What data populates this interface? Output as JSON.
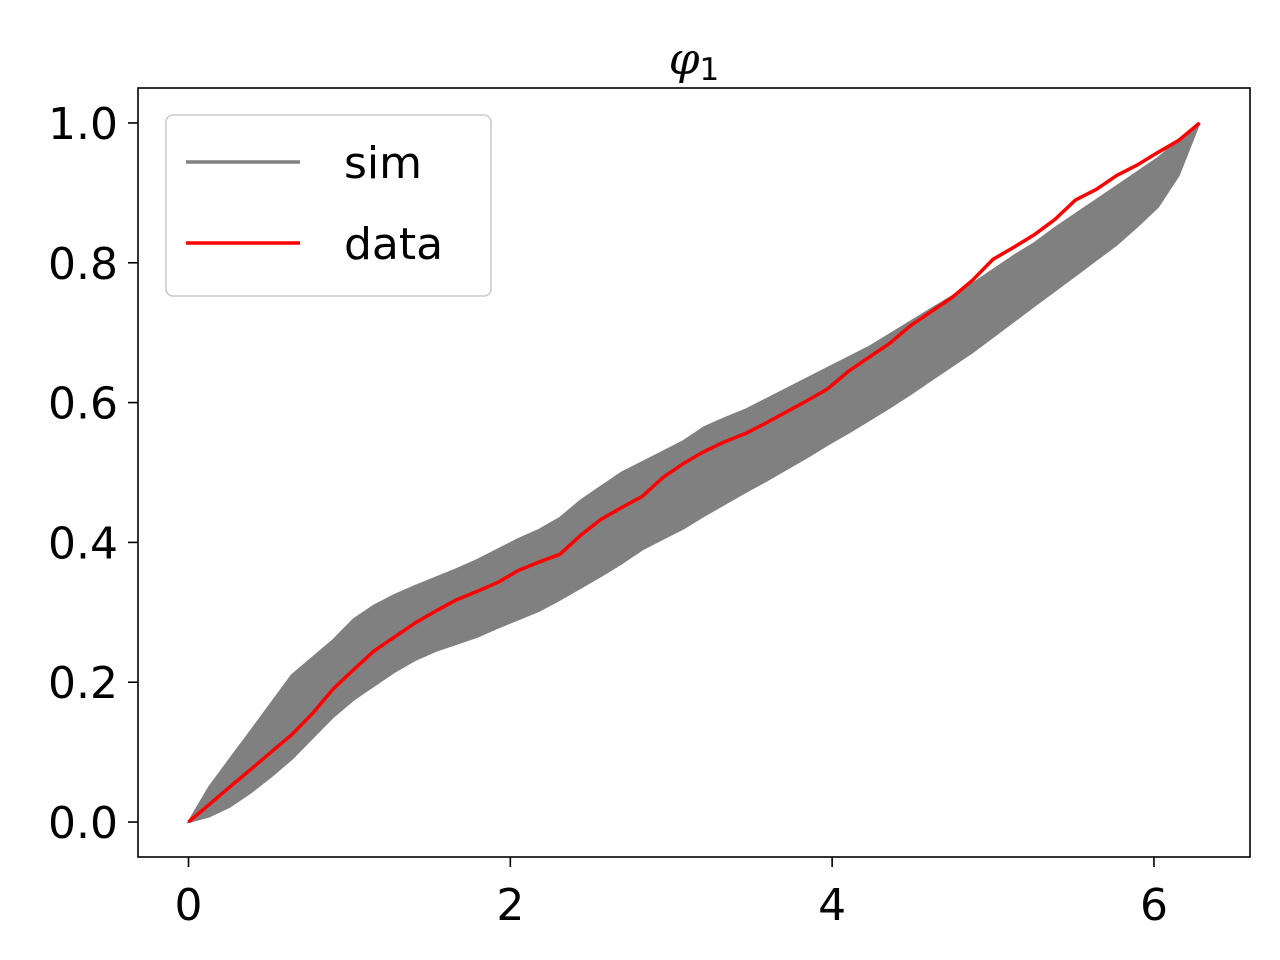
{
  "chart_data": {
    "type": "line",
    "title": "φ",
    "title_subscript": "1",
    "xlabel": "",
    "ylabel": "",
    "xlim": [
      -0.314,
      6.597
    ],
    "ylim": [
      -0.05,
      1.05
    ],
    "xticks": [
      0,
      2,
      4,
      6
    ],
    "xtick_labels": [
      "0",
      "2",
      "4",
      "6"
    ],
    "yticks": [
      0.0,
      0.2,
      0.4,
      0.6,
      0.8,
      1.0
    ],
    "ytick_labels": [
      "0.0",
      "0.2",
      "0.4",
      "0.6",
      "0.8",
      "1.0"
    ],
    "grid": false,
    "legend": {
      "placement": "upper-left",
      "entries": [
        {
          "label": "sim",
          "color": "#808080"
        },
        {
          "label": "data",
          "color": "#ff0000"
        }
      ]
    },
    "series": [
      {
        "name": "sim",
        "kind": "band",
        "color": "#808080",
        "x": [
          0.0,
          0.128,
          0.256,
          0.385,
          0.513,
          0.641,
          0.769,
          0.897,
          1.026,
          1.154,
          1.282,
          1.41,
          1.538,
          1.667,
          1.795,
          1.923,
          2.051,
          2.179,
          2.308,
          2.436,
          2.564,
          2.692,
          2.821,
          2.949,
          3.077,
          3.205,
          3.333,
          3.462,
          3.59,
          3.718,
          3.846,
          3.974,
          4.103,
          4.231,
          4.359,
          4.487,
          4.615,
          4.744,
          4.872,
          5.0,
          5.128,
          5.256,
          5.385,
          5.513,
          5.641,
          5.769,
          5.897,
          6.026,
          6.154,
          6.283
        ],
        "upper": [
          0.0,
          0.05,
          0.09,
          0.13,
          0.17,
          0.21,
          0.235,
          0.26,
          0.29,
          0.31,
          0.325,
          0.338,
          0.35,
          0.362,
          0.375,
          0.39,
          0.405,
          0.418,
          0.435,
          0.46,
          0.48,
          0.5,
          0.515,
          0.53,
          0.545,
          0.565,
          0.578,
          0.59,
          0.605,
          0.62,
          0.635,
          0.65,
          0.665,
          0.68,
          0.698,
          0.716,
          0.734,
          0.752,
          0.77,
          0.79,
          0.81,
          0.828,
          0.85,
          0.87,
          0.89,
          0.91,
          0.93,
          0.95,
          0.975,
          1.0
        ],
        "lower": [
          0.0,
          0.008,
          0.022,
          0.042,
          0.065,
          0.09,
          0.12,
          0.15,
          0.175,
          0.195,
          0.215,
          0.232,
          0.245,
          0.255,
          0.265,
          0.278,
          0.29,
          0.302,
          0.318,
          0.335,
          0.352,
          0.37,
          0.39,
          0.405,
          0.42,
          0.438,
          0.455,
          0.472,
          0.488,
          0.505,
          0.522,
          0.54,
          0.557,
          0.575,
          0.593,
          0.612,
          0.632,
          0.652,
          0.672,
          0.694,
          0.716,
          0.738,
          0.76,
          0.782,
          0.804,
          0.826,
          0.852,
          0.88,
          0.925,
          1.0
        ]
      },
      {
        "name": "data",
        "kind": "line",
        "color": "#ff0000",
        "x": [
          0.0,
          0.128,
          0.256,
          0.385,
          0.513,
          0.641,
          0.769,
          0.897,
          1.026,
          1.154,
          1.282,
          1.41,
          1.538,
          1.667,
          1.795,
          1.923,
          2.051,
          2.179,
          2.308,
          2.436,
          2.564,
          2.692,
          2.821,
          2.949,
          3.077,
          3.205,
          3.333,
          3.462,
          3.59,
          3.718,
          3.846,
          3.974,
          4.103,
          4.231,
          4.359,
          4.487,
          4.615,
          4.744,
          4.872,
          5.0,
          5.128,
          5.256,
          5.385,
          5.513,
          5.641,
          5.769,
          5.897,
          6.026,
          6.154,
          6.283
        ],
        "y": [
          0.0,
          0.025,
          0.05,
          0.075,
          0.1,
          0.125,
          0.155,
          0.19,
          0.218,
          0.245,
          0.265,
          0.285,
          0.302,
          0.318,
          0.33,
          0.343,
          0.36,
          0.372,
          0.383,
          0.41,
          0.433,
          0.45,
          0.466,
          0.493,
          0.513,
          0.53,
          0.544,
          0.556,
          0.571,
          0.587,
          0.603,
          0.62,
          0.645,
          0.665,
          0.685,
          0.71,
          0.73,
          0.75,
          0.775,
          0.805,
          0.822,
          0.84,
          0.862,
          0.89,
          0.905,
          0.925,
          0.94,
          0.958,
          0.975,
          1.0
        ]
      }
    ]
  }
}
